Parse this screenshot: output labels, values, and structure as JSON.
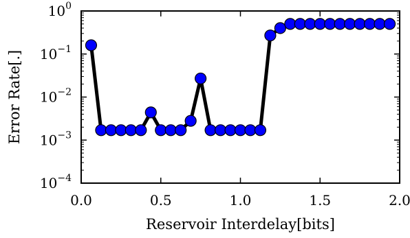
{
  "chart_data": {
    "type": "line",
    "xlabel": "Reservoir Interdelay[bits]",
    "ylabel": "Error Rate[.]",
    "xlim": [
      0.0,
      2.0
    ],
    "ylim": [
      0.0001,
      1
    ],
    "yscale": "log",
    "grid": false,
    "x_ticks": [
      "0.0",
      "0.5",
      "1.0",
      "1.5",
      "2.0"
    ],
    "y_ticks": [
      {
        "base": "10",
        "exp": "0"
      },
      {
        "base": "10",
        "exp": "−1"
      },
      {
        "base": "10",
        "exp": "−2"
      },
      {
        "base": "10",
        "exp": "−3"
      },
      {
        "base": "10",
        "exp": "−4"
      }
    ],
    "series": [
      {
        "line_color": "#000000",
        "marker_color": "#0000ff",
        "x": [
          0.0625,
          0.125,
          0.1875,
          0.25,
          0.3125,
          0.375,
          0.4375,
          0.5,
          0.5625,
          0.625,
          0.6875,
          0.75,
          0.8125,
          0.875,
          0.9375,
          1.0,
          1.0625,
          1.125,
          1.1875,
          1.25,
          1.3125,
          1.375,
          1.4375,
          1.5,
          1.5625,
          1.625,
          1.6875,
          1.75,
          1.8125,
          1.875,
          1.9375
        ],
        "y": [
          0.16,
          0.0017,
          0.0017,
          0.0017,
          0.0017,
          0.0017,
          0.0044,
          0.0017,
          0.0017,
          0.0017,
          0.0028,
          0.027,
          0.0017,
          0.0017,
          0.0017,
          0.0017,
          0.0017,
          0.0017,
          0.27,
          0.4,
          0.5,
          0.5,
          0.5,
          0.5,
          0.5,
          0.5,
          0.5,
          0.5,
          0.5,
          0.5,
          0.5
        ]
      }
    ]
  }
}
